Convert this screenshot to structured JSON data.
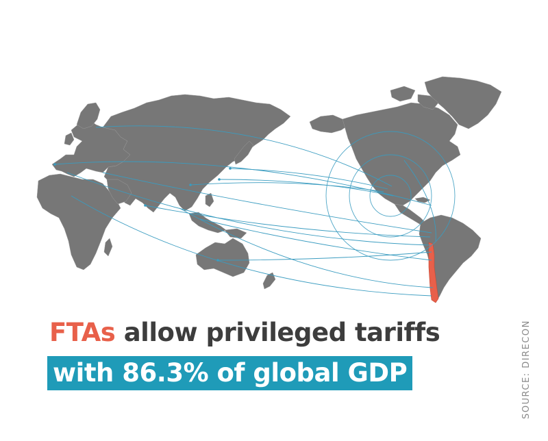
{
  "headline": {
    "accent": "FTAs",
    "rest": " allow privileged tariffs"
  },
  "subline": {
    "text": "with 86.3% of global GDP"
  },
  "source": {
    "text": "SOURCE: DIRECON"
  },
  "colors": {
    "land": "#777777",
    "highlight": "#e8604a",
    "connection": "#3a9cc0",
    "banner": "#1f9bb8",
    "text": "#3d3d3d"
  }
}
